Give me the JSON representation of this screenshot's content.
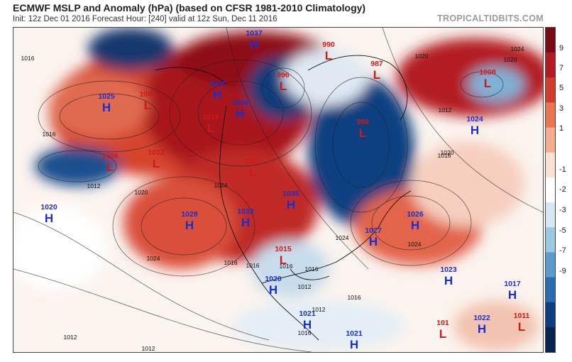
{
  "header": {
    "title": "ECMWF MSLP and Anomaly (hPa) (based on CFSR 1981-2010 Climatology)",
    "subtitle": "Init: 12z Dec 01 2016   Forecast Hour: [240]   valid at 12z Sun, Dec 11 2016",
    "brand": "TROPICALTIDBITS.COM"
  },
  "colorbar": {
    "labels": [
      "9",
      "7",
      "5",
      "3",
      "1",
      "-1",
      "-2",
      "-3",
      "-5",
      "-7",
      "-9"
    ],
    "colors": [
      "#7a0a14",
      "#b01c22",
      "#d43d2c",
      "#ea7552",
      "#f4ad8f",
      "#fbe1d4",
      "#ffffff",
      "#d6e6f3",
      "#9ec8e2",
      "#5a9ccc",
      "#2a6cb0",
      "#0d3f80",
      "#08234f"
    ]
  },
  "pressure_centers": [
    {
      "type": "H",
      "value": "1037"
    },
    {
      "type": "H",
      "value": "1025"
    },
    {
      "type": "L",
      "value": "1007"
    },
    {
      "type": "H",
      "value": "1034"
    },
    {
      "type": "H",
      "value": "1044"
    },
    {
      "type": "L",
      "value": "1019"
    },
    {
      "type": "L",
      "value": "990"
    },
    {
      "type": "L",
      "value": "996"
    },
    {
      "type": "L",
      "value": "980"
    },
    {
      "type": "L",
      "value": "987"
    },
    {
      "type": "L",
      "value": "1008"
    },
    {
      "type": "H",
      "value": "1024"
    },
    {
      "type": "L",
      "value": "1006"
    },
    {
      "type": "L",
      "value": "1012"
    },
    {
      "type": "L",
      "value": "1020"
    },
    {
      "type": "H",
      "value": "1020"
    },
    {
      "type": "H",
      "value": "1028"
    },
    {
      "type": "H",
      "value": "1032"
    },
    {
      "type": "H",
      "value": "1035"
    },
    {
      "type": "H",
      "value": "1026"
    },
    {
      "type": "H",
      "value": "1027"
    },
    {
      "type": "L",
      "value": "1015"
    },
    {
      "type": "H",
      "value": "1020"
    },
    {
      "type": "H",
      "value": "1023"
    },
    {
      "type": "H",
      "value": "1017"
    },
    {
      "type": "H",
      "value": "1021"
    },
    {
      "type": "H",
      "value": "1021"
    },
    {
      "type": "L",
      "value": "101"
    },
    {
      "type": "H",
      "value": "1022"
    },
    {
      "type": "L",
      "value": "1011"
    }
  ],
  "isobar_labels": [
    "1016",
    "1020",
    "1016",
    "1012",
    "1020",
    "1024",
    "1024",
    "1016",
    "1016",
    "1016",
    "1024",
    "1024",
    "1012",
    "1012",
    "1016",
    "1012",
    "1016",
    "1020",
    "1020",
    "1024",
    "1012",
    "1012",
    "1016",
    "1016"
  ]
}
